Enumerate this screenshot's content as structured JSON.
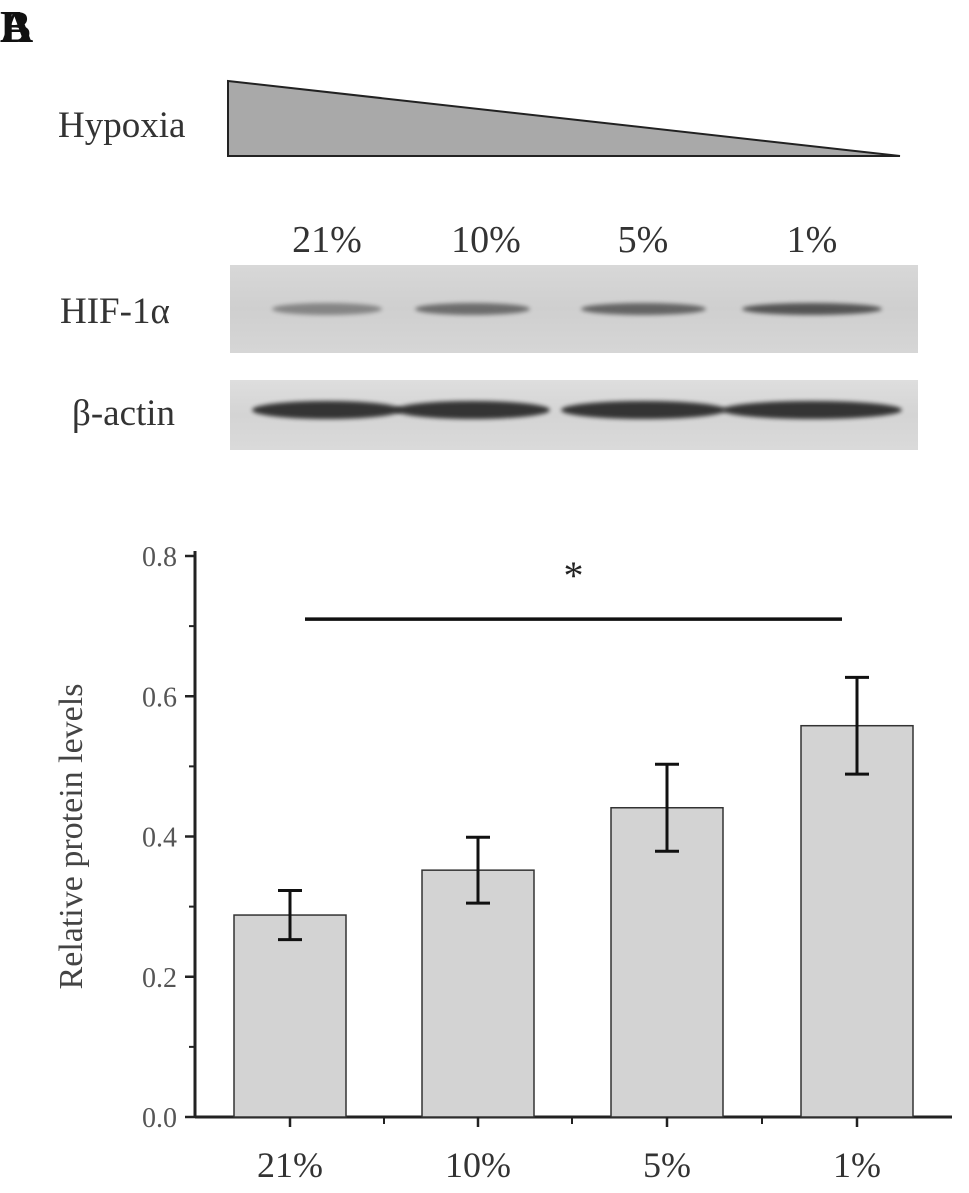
{
  "panel_a": {
    "letter": "A",
    "gradient_label": "Hypoxia",
    "lanes": [
      "21%",
      "10%",
      "5%",
      "1%"
    ],
    "rows": [
      {
        "label": "HIF-1α",
        "band_intensity": [
          0.45,
          0.6,
          0.65,
          0.75
        ]
      },
      {
        "label": "β-actin",
        "band_intensity": [
          0.95,
          0.95,
          0.95,
          0.95
        ]
      }
    ],
    "colors": {
      "triangle": "#a9a9a9",
      "band": "#2c2c2c"
    }
  },
  "panel_b": {
    "letter": "B"
  },
  "chart_data": {
    "type": "bar",
    "categories": [
      "21%",
      "10%",
      "5%",
      "1%"
    ],
    "values": [
      0.288,
      0.352,
      0.441,
      0.558
    ],
    "errors": [
      0.035,
      0.047,
      0.062,
      0.069
    ],
    "ylabel": "Relative protein levels",
    "xlabel": "",
    "ylim": [
      0,
      0.8
    ],
    "yticks": [
      "0.0",
      "0.2",
      "0.4",
      "0.6",
      "0.8"
    ],
    "significance": {
      "from": "21%",
      "to": "1%",
      "y": 0.71,
      "symbol": "*"
    },
    "grid": false,
    "bar_color": "#d3d3d3"
  }
}
